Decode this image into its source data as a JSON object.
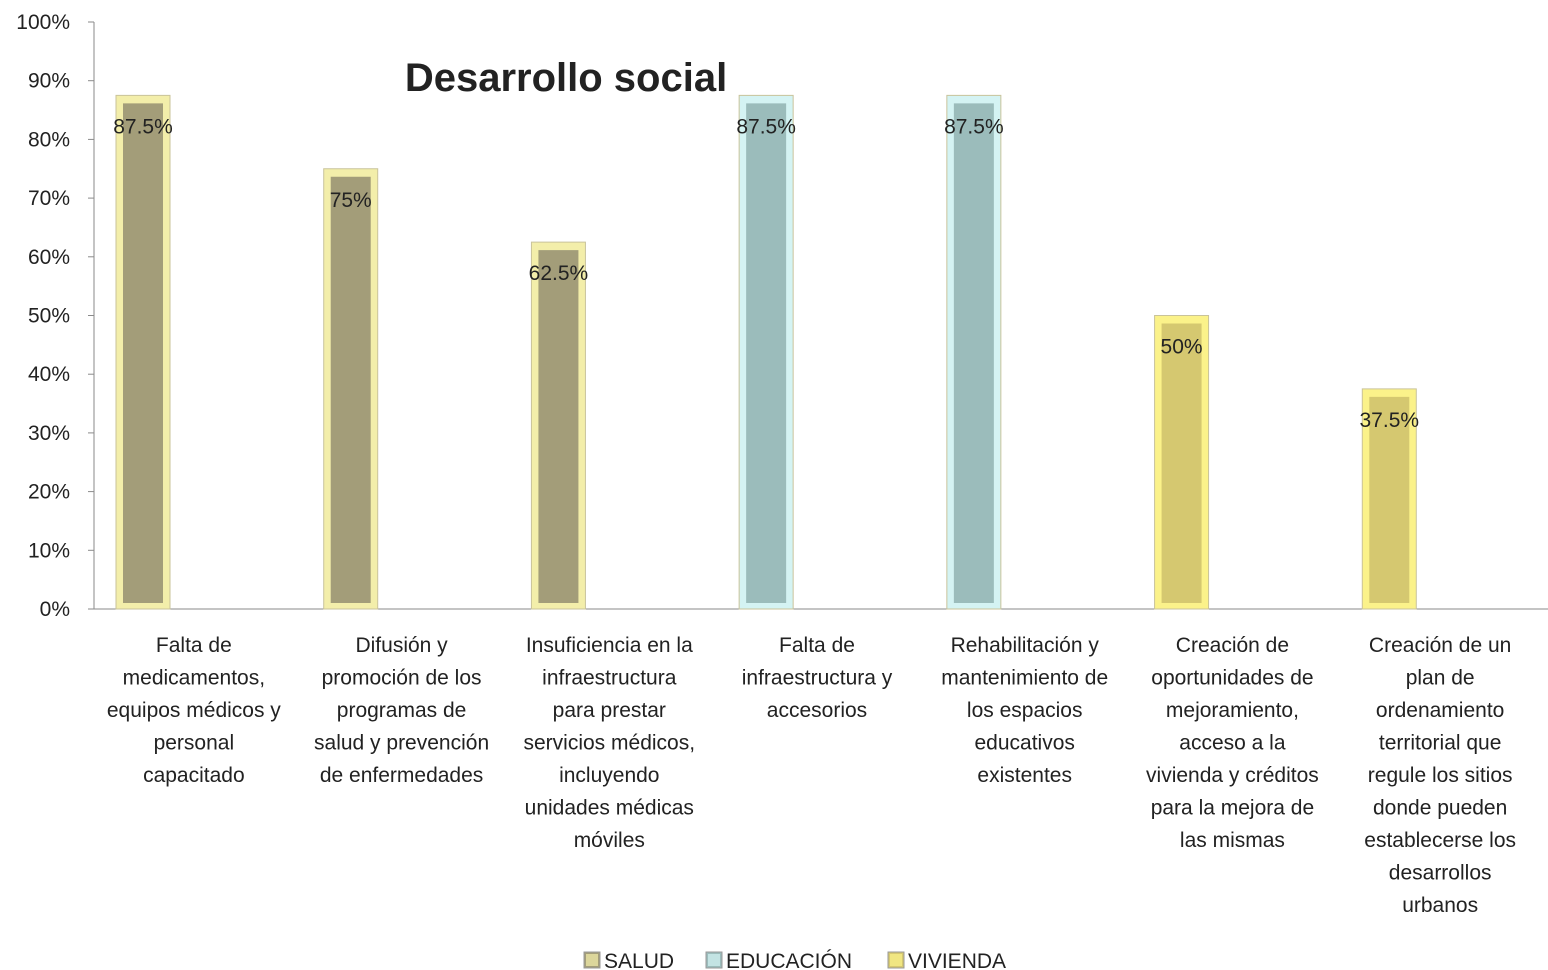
{
  "chart_data": {
    "type": "bar",
    "title": "Desarrollo social",
    "categories": [
      [
        "Falta de",
        "medicamentos,",
        "equipos médicos y",
        "personal",
        "capacitado"
      ],
      [
        "Difusión y",
        "promoción de los",
        "programas de",
        "salud y prevención",
        "de enfermedades"
      ],
      [
        "Insuficiencia en la",
        "infraestructura",
        "para prestar",
        "servicios médicos,",
        "incluyendo",
        "unidades médicas",
        "móviles"
      ],
      [
        "Falta de",
        "infraestructura y",
        "accesorios"
      ],
      [
        "Rehabilitación y",
        "mantenimiento de",
        "los espacios",
        "educativos",
        "existentes"
      ],
      [
        "Creación de",
        "oportunidades de",
        "mejoramiento,",
        "acceso a la",
        "vivienda y créditos",
        "para la mejora de",
        "las mismas"
      ],
      [
        "Creación de un",
        "plan de",
        "ordenamiento",
        "territorial que",
        "regule los sitios",
        "donde pueden",
        "establecerse los",
        "desarrollos",
        "urbanos"
      ]
    ],
    "series": [
      {
        "name": "SALUD",
        "color": "#a39d79",
        "edge": "#f3eeaa",
        "values": [
          87.5,
          75,
          62.5,
          null,
          null,
          null,
          null
        ],
        "labels": [
          "87.5%",
          "75%",
          "62.5%",
          "",
          "",
          "",
          ""
        ]
      },
      {
        "name": "EDUCACIÓN",
        "color": "#9bbcbb",
        "edge": "#d4f3f3",
        "values": [
          null,
          null,
          null,
          87.5,
          87.5,
          null,
          null
        ],
        "labels": [
          "",
          "",
          "",
          "87.5%",
          "87.5%",
          "",
          ""
        ]
      },
      {
        "name": "VIVIENDA",
        "color": "#d5c870",
        "edge": "#fbf28a",
        "values": [
          null,
          null,
          null,
          null,
          null,
          50,
          37.5
        ],
        "labels": [
          "",
          "",
          "",
          "",
          "",
          "50%",
          "37.5%"
        ]
      }
    ],
    "yticks": [
      "0%",
      "10%",
      "20%",
      "30%",
      "40%",
      "50%",
      "60%",
      "70%",
      "80%",
      "90%",
      "100%"
    ],
    "ylim": [
      0,
      100
    ],
    "legend_position": "bottom",
    "grid": false
  }
}
